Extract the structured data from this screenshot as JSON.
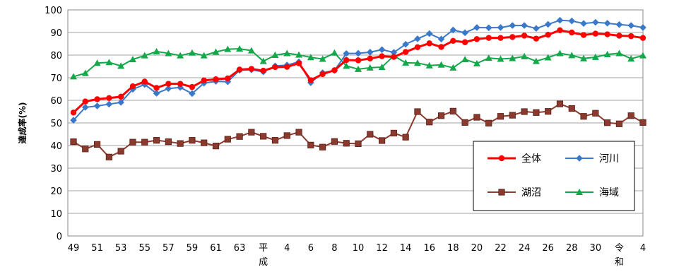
{
  "chart_data": {
    "type": "line",
    "ylabel": "達成率(%)",
    "ylim": [
      0,
      100
    ],
    "yticks": [
      0,
      10,
      20,
      30,
      40,
      50,
      60,
      70,
      80,
      90,
      100
    ],
    "grid": true,
    "legend_position": "bottom-right",
    "x_tick_labels": [
      "49",
      "51",
      "53",
      "55",
      "57",
      "59",
      "61",
      "63",
      "平成",
      "4",
      "6",
      "8",
      "10",
      "12",
      "14",
      "16",
      "18",
      "20",
      "22",
      "24",
      "26",
      "28",
      "30",
      "令和",
      "4"
    ],
    "series": [
      {
        "name": "全体",
        "color": "#ff0000",
        "marker": "circle",
        "values": [
          54.6,
          59.5,
          60.5,
          61,
          61.6,
          66.2,
          68.3,
          65.5,
          67.3,
          67.3,
          65.9,
          68.8,
          69.3,
          69.7,
          73.6,
          73.9,
          73.1,
          74.7,
          74.8,
          76.4,
          68.9,
          71.6,
          73.3,
          77.8,
          77.7,
          78.5,
          79.5,
          79.2,
          81.4,
          83.5,
          85.2,
          83.6,
          86.3,
          85.7,
          87.1,
          87.6,
          87.6,
          88,
          88.6,
          87.3,
          89,
          91,
          90,
          88.9,
          89.5,
          89.2,
          88.6,
          88.4,
          87.6
        ]
      },
      {
        "name": "河川",
        "color": "#3a78c9",
        "marker": "diamond",
        "values": [
          51.2,
          56.9,
          57.5,
          58.3,
          59.1,
          64.9,
          67,
          63.1,
          65.2,
          65.7,
          63,
          67.6,
          68.4,
          68.2,
          73.3,
          73.5,
          72.6,
          75.2,
          75.6,
          77,
          67.8,
          72.2,
          73.2,
          80.7,
          80.8,
          81.3,
          82.4,
          81.2,
          84.8,
          87.2,
          89.5,
          87.1,
          91.1,
          89.9,
          92.2,
          92.1,
          92.2,
          93.1,
          93.1,
          91.8,
          93.6,
          95.4,
          95.1,
          94,
          94.5,
          94.1,
          93.5,
          93.1,
          92.2
        ]
      },
      {
        "name": "湖沼",
        "color": "#8b3a2f",
        "marker": "square",
        "values": [
          41.7,
          38.5,
          40.5,
          34.9,
          37.5,
          41.5,
          41.5,
          42.3,
          41.7,
          40.9,
          42.3,
          41.2,
          39.8,
          42.8,
          44,
          45.9,
          44.1,
          42.3,
          44.4,
          45.9,
          40.2,
          39.3,
          41.8,
          41,
          40.8,
          45,
          42.2,
          45.5,
          43.7,
          55,
          50.4,
          53.2,
          55.2,
          50.2,
          52.5,
          49.9,
          52.9,
          53.4,
          55,
          54.6,
          55.1,
          58.4,
          56.4,
          52.9,
          54.3,
          50.1,
          49.6,
          53.2,
          50.2
        ]
      },
      {
        "name": "海域",
        "color": "#13a84a",
        "marker": "triangle",
        "values": [
          70.5,
          72,
          76.5,
          76.8,
          75.2,
          78.1,
          79.8,
          81.6,
          80.8,
          79.8,
          81,
          79.8,
          81.4,
          82.6,
          82.8,
          82,
          77.3,
          80,
          80.8,
          80.1,
          79,
          78.3,
          81,
          75.2,
          73.8,
          74.4,
          74.7,
          79.7,
          76.6,
          76.5,
          75.4,
          75.7,
          74.4,
          78.1,
          76.3,
          78.7,
          78.3,
          78.6,
          79.4,
          77.3,
          78.9,
          80.8,
          79.9,
          78.5,
          79.1,
          80.3,
          80.8,
          78.4,
          79.8
        ]
      }
    ]
  }
}
